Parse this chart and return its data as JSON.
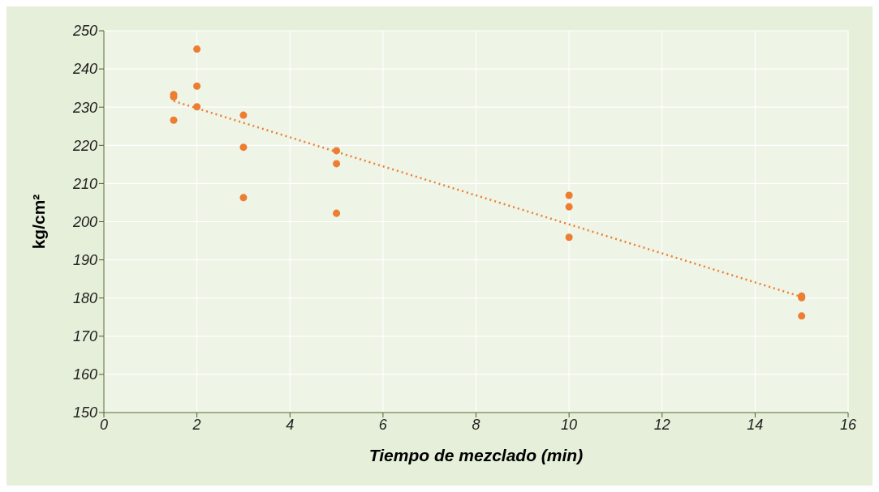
{
  "chart_data": {
    "type": "scatter",
    "xlabel": "Tiempo de mezclado (min)",
    "ylabel": "kg/cm²",
    "xlim": [
      0,
      16
    ],
    "xticks": [
      0,
      2,
      4,
      6,
      8,
      10,
      12,
      14,
      16
    ],
    "ylim": [
      150,
      250
    ],
    "yticks": [
      150,
      160,
      170,
      180,
      190,
      200,
      210,
      220,
      230,
      240,
      250
    ],
    "grid": true,
    "series": [
      {
        "marker": "circle",
        "color": "#ed7d31",
        "x": [
          1.5,
          1.5,
          1.5,
          2,
          2,
          2,
          3,
          3,
          3,
          5,
          5,
          5,
          10,
          10,
          10,
          15,
          15,
          15
        ],
        "values": [
          233.3,
          232.7,
          226.6,
          245.2,
          235.5,
          230.1,
          227.9,
          219.5,
          206.3,
          218.6,
          215.2,
          202.2,
          206.9,
          203.9,
          195.9,
          180.5,
          180.1,
          175.3
        ]
      },
      {
        "type": "line",
        "marker": "none",
        "color": "#ed7d31",
        "line_style": "dotted",
        "x": [
          1.5,
          15
        ],
        "values": [
          231.6,
          180.3
        ]
      }
    ]
  }
}
